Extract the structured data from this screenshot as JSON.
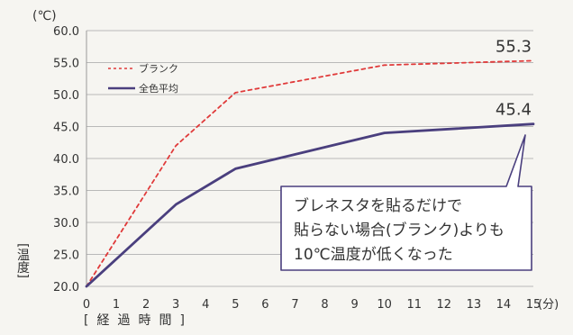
{
  "chart_data": {
    "type": "line",
    "y_unit": "(℃)",
    "x_unit": "(分)",
    "xlabel": "[経過時間]",
    "ylabel": "[温度]",
    "ylim": [
      20.0,
      60.0
    ],
    "y_ticks": [
      20.0,
      25.0,
      30.0,
      35.0,
      40.0,
      45.0,
      50.0,
      55.0,
      60.0
    ],
    "y_tick_labels": [
      "20.0",
      "25.0",
      "30.0",
      "35.0",
      "40.0",
      "45.0",
      "50.0",
      "55.0",
      "60.0"
    ],
    "xlim": [
      0,
      15
    ],
    "x_ticks": [
      0,
      1,
      2,
      3,
      4,
      5,
      6,
      7,
      8,
      9,
      10,
      11,
      12,
      13,
      14,
      15
    ],
    "x_tick_labels": [
      "0",
      "1",
      "2",
      "3",
      "4",
      "5",
      "6",
      "7",
      "8",
      "9",
      "10",
      "11",
      "12",
      "13",
      "14",
      "15"
    ],
    "grid": true,
    "legend_position": "top-left",
    "series": [
      {
        "name": "ブランク",
        "color": "#e03a3a",
        "style": "dashed",
        "x": [
          0,
          3,
          5,
          10,
          15
        ],
        "values": [
          20.0,
          42.0,
          50.3,
          54.6,
          55.3
        ]
      },
      {
        "name": "全色平均",
        "color": "#4a3f7e",
        "style": "solid",
        "x": [
          0,
          3,
          5,
          10,
          15
        ],
        "values": [
          20.0,
          32.8,
          38.4,
          44.0,
          45.4
        ]
      }
    ],
    "data_labels": [
      {
        "text": "55.3",
        "x": 15,
        "y": 55.3
      },
      {
        "text": "45.4",
        "x": 15,
        "y": 45.4
      }
    ],
    "annotation": {
      "lines": [
        "ブレネスタを貼るだけで",
        "貼らない場合(ブランク)よりも",
        "10℃温度が低くなった"
      ],
      "color": "#4a3f7e"
    }
  }
}
